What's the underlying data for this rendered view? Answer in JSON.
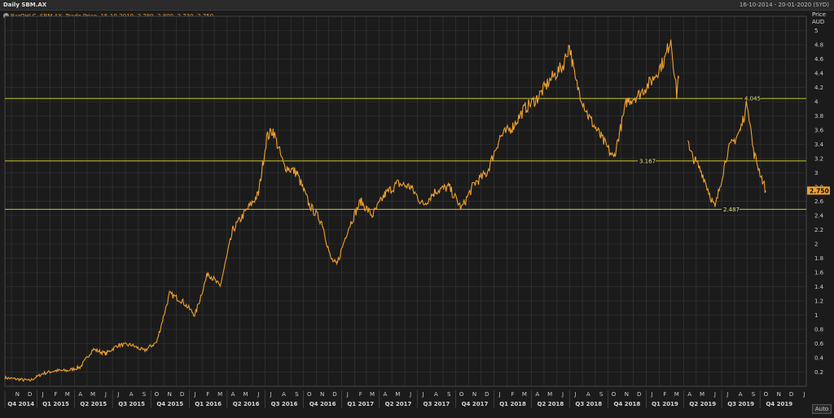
{
  "window": {
    "title": "Daily SBM.AX",
    "date_range": "16-10-2014 - 20-01-2020 (SYD)"
  },
  "legend_text": "BarOHLC, SBM.AX, Trade Price, 15-10-2019, 2.780, 2.800, 2.730, 2.750",
  "price_axis_label": "Price",
  "currency": "AUD",
  "auto_button": "Auto",
  "colors": {
    "background": "#1b1b1b",
    "price_line": "#f0a030",
    "level_line": "#c9c92a",
    "grid": "#3a3a3a",
    "last_price_tag": "#f0a030"
  },
  "chart_data": {
    "type": "line",
    "title": "Daily SBM.AX",
    "ylabel": "Price AUD",
    "ylim": [
      0,
      5.2
    ],
    "yticks": [
      0.2,
      0.4,
      0.6,
      0.8,
      1,
      1.2,
      1.4,
      1.6,
      1.8,
      2,
      2.2,
      2.4,
      2.6,
      2.8,
      3,
      3.2,
      3.4,
      3.6,
      3.8,
      4,
      4.2,
      4.4,
      4.6,
      4.8,
      5
    ],
    "month_labels": [
      "N",
      "D",
      "J",
      "F",
      "M",
      "A",
      "M",
      "J",
      "J",
      "A",
      "S",
      "O",
      "N",
      "D",
      "J",
      "F",
      "M",
      "A",
      "M",
      "J",
      "J",
      "A",
      "S",
      "O",
      "N",
      "D",
      "J",
      "F",
      "M",
      "A",
      "M",
      "J",
      "J",
      "A",
      "S",
      "O",
      "N",
      "D",
      "J",
      "F",
      "M",
      "A",
      "M",
      "J",
      "J",
      "A",
      "S",
      "O",
      "N",
      "D",
      "J",
      "F",
      "M",
      "A",
      "M",
      "J",
      "J",
      "A",
      "S",
      "O",
      "N",
      "D",
      "J",
      "F",
      "M",
      "A",
      "M",
      "J",
      "J",
      "A",
      "S",
      "O",
      "N",
      "D",
      "J"
    ],
    "quarter_labels": [
      "Q4 2014",
      "Q1 2015",
      "Q2 2015",
      "Q3 2015",
      "Q4 2015",
      "Q1 2016",
      "Q2 2016",
      "Q3 2016",
      "Q4 2016",
      "Q1 2017",
      "Q2 2017",
      "Q3 2017",
      "Q4 2017",
      "Q1 2018",
      "Q2 2018",
      "Q3 2018",
      "Q4 2018",
      "Q1 2019",
      "Q2 2019",
      "Q3 2019",
      "Q4 2019"
    ],
    "levels": [
      {
        "value": 4.045,
        "label": "4.045"
      },
      {
        "value": 3.167,
        "label": "3.167"
      },
      {
        "value": 2.487,
        "label": "2.487"
      }
    ],
    "last_price": {
      "value": 2.75,
      "label": "2.750"
    },
    "series": [
      {
        "x": [
          "2014-10-16",
          "2014-11-15",
          "2014-12-15",
          "2015-01-15",
          "2015-02-15",
          "2015-03-15",
          "2015-04-15",
          "2015-05-15",
          "2015-06-15",
          "2015-07-15",
          "2015-08-15",
          "2015-09-15",
          "2015-10-15",
          "2015-11-15",
          "2015-12-15",
          "2016-01-15",
          "2016-02-15",
          "2016-03-15",
          "2016-04-15",
          "2016-05-15",
          "2016-06-15",
          "2016-07-05",
          "2016-07-20",
          "2016-08-15",
          "2016-09-15",
          "2016-10-15",
          "2016-11-15",
          "2016-12-05",
          "2016-12-20",
          "2017-01-15",
          "2017-02-15",
          "2017-03-15",
          "2017-04-15",
          "2017-05-15",
          "2017-06-15",
          "2017-07-15",
          "2017-08-15",
          "2017-09-15",
          "2017-10-15",
          "2017-11-15",
          "2017-12-15",
          "2018-01-15",
          "2018-02-15",
          "2018-03-15",
          "2018-04-15",
          "2018-05-15",
          "2018-06-15",
          "2018-07-01",
          "2018-07-15",
          "2018-08-15",
          "2018-09-15",
          "2018-10-15",
          "2018-11-15",
          "2018-12-15",
          "2019-01-15",
          "2019-02-15",
          "2019-03-01",
          "2019-03-15",
          "2019-03-20",
          "2019-04-15",
          "2019-05-15",
          "2019-06-15",
          "2019-07-15",
          "2019-08-15",
          "2019-09-01",
          "2019-09-15",
          "2019-10-15"
        ],
        "y": [
          0.12,
          0.1,
          0.08,
          0.18,
          0.22,
          0.22,
          0.27,
          0.52,
          0.46,
          0.58,
          0.58,
          0.5,
          0.62,
          1.3,
          1.2,
          1.0,
          1.6,
          1.4,
          2.2,
          2.45,
          2.7,
          3.5,
          3.6,
          3.1,
          3.0,
          2.55,
          2.3,
          1.8,
          1.7,
          2.2,
          2.6,
          2.4,
          2.7,
          2.85,
          2.8,
          2.55,
          2.75,
          2.8,
          2.5,
          2.85,
          3.0,
          3.5,
          3.65,
          3.9,
          4.05,
          4.3,
          4.5,
          4.8,
          4.3,
          3.8,
          3.5,
          3.2,
          4.0,
          4.1,
          4.3,
          4.6,
          4.9,
          4.1,
          4.4,
          3.3,
          3.0,
          2.5,
          3.3,
          3.6,
          4.0,
          3.3,
          2.75
        ]
      }
    ]
  }
}
